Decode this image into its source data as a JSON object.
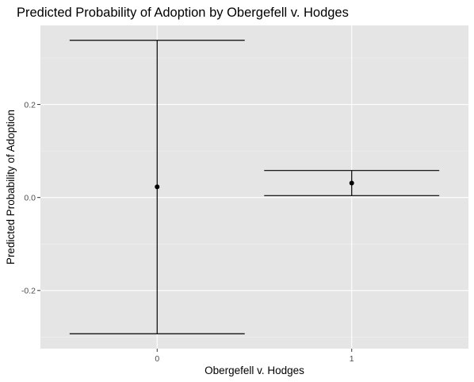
{
  "chart_data": {
    "type": "errorbar",
    "title": "Predicted Probability of Adoption by Obergefell v. Hodges",
    "xlabel": "Obergefell v. Hodges",
    "ylabel": "Predicted Probability of Adoption",
    "categories": [
      "0",
      "1"
    ],
    "points": [
      {
        "x": "0",
        "estimate": 0.023,
        "lower": -0.293,
        "upper": 0.338
      },
      {
        "x": "1",
        "estimate": 0.031,
        "lower": 0.004,
        "upper": 0.058
      }
    ],
    "y_ticks": [
      -0.2,
      0.0,
      0.2
    ],
    "y_tick_labels": [
      "-0.2",
      "0.0",
      "0.2"
    ],
    "ylim": [
      -0.325,
      0.37
    ],
    "grid": true,
    "legend": "none",
    "colors": {
      "panel_background": "#e5e5e5",
      "grid_major": "#ffffff",
      "grid_minor": "#f2f2f2",
      "marks": "#000000",
      "tick_label": "#4d4d4d"
    }
  }
}
